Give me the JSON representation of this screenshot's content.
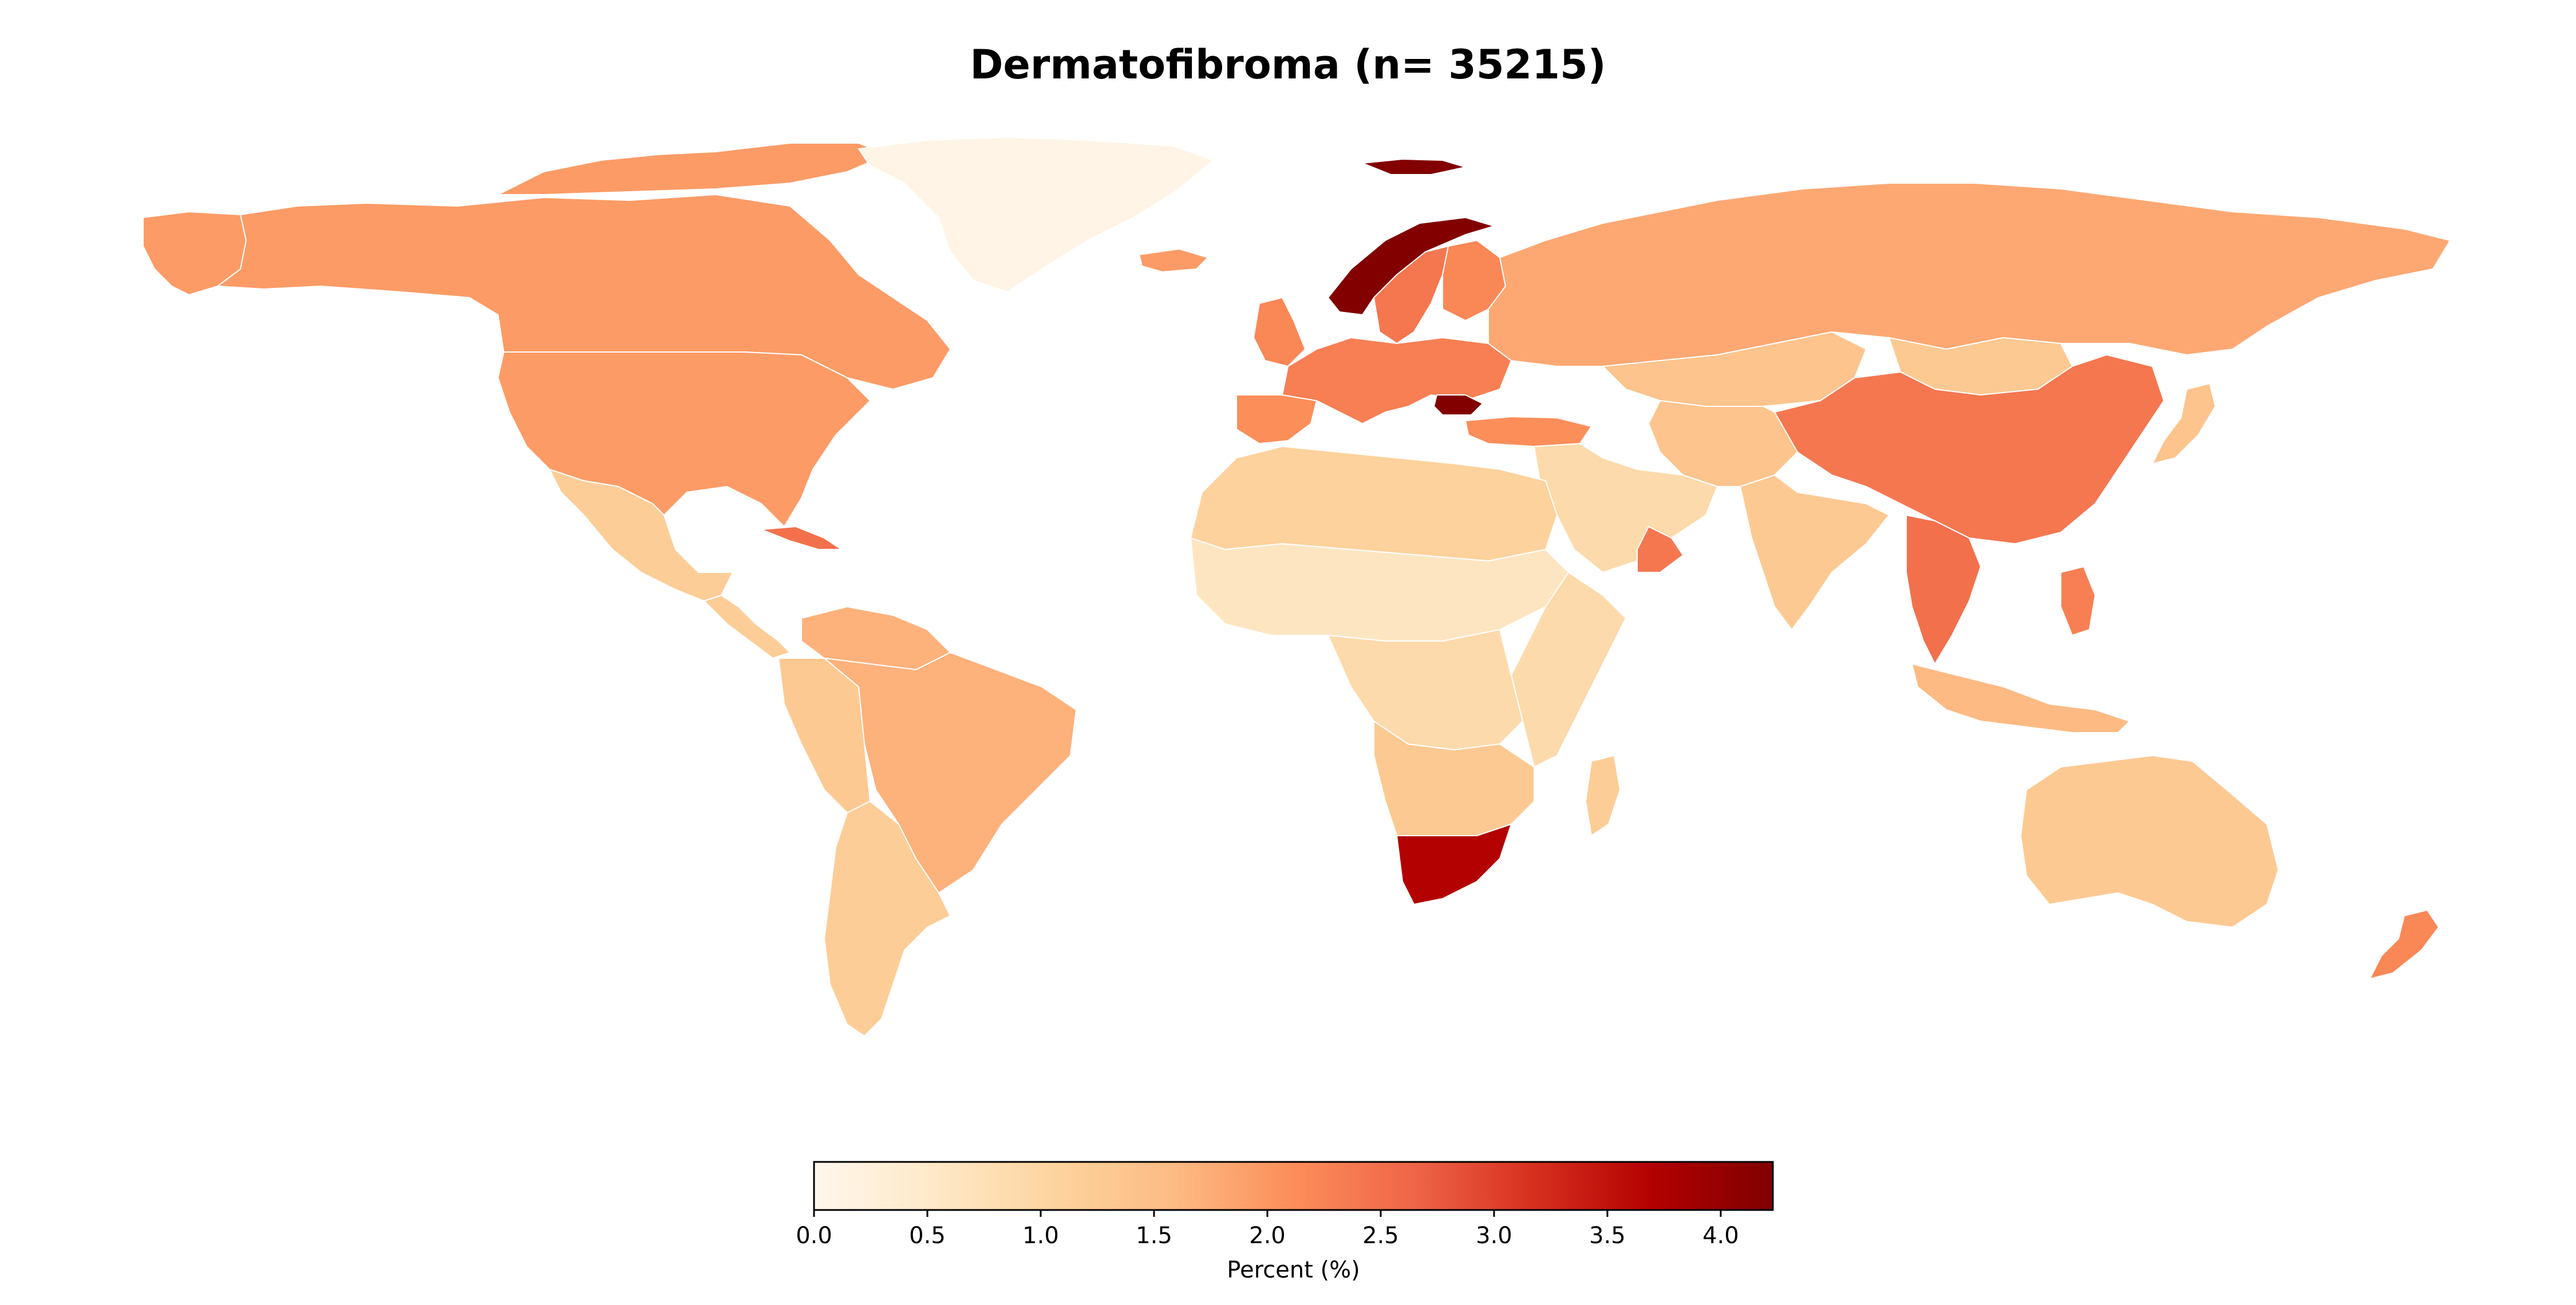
{
  "title": "Dermatofibroma (n= 35215)",
  "colorbar": {
    "label": "Percent (%)",
    "min": 0.0,
    "max": 4.23,
    "ticks": [
      0.0,
      0.5,
      1.0,
      1.5,
      2.0,
      2.5,
      3.0,
      3.5,
      4.0
    ],
    "tick_labels": [
      "0.0",
      "0.5",
      "1.0",
      "1.5",
      "2.0",
      "2.5",
      "3.0",
      "3.5",
      "4.0"
    ],
    "colormap": "OrRd",
    "stops": [
      "#fff7ec",
      "#fee8c8",
      "#fdd49e",
      "#fdbb84",
      "#fc8d59",
      "#ef6548",
      "#d7301f",
      "#b30000",
      "#7f0000"
    ]
  },
  "chart_data": {
    "type": "choropleth",
    "metric": "Percent (%)",
    "range": [
      0.0,
      4.23
    ],
    "regions": [
      {
        "name": "Canada",
        "value": 1.95
      },
      {
        "name": "United States",
        "value": 1.95
      },
      {
        "name": "Alaska",
        "value": 1.95
      },
      {
        "name": "Greenland",
        "value": 0.1
      },
      {
        "name": "Mexico",
        "value": 1.2
      },
      {
        "name": "Central America",
        "value": 1.2
      },
      {
        "name": "Cuba",
        "value": 2.5
      },
      {
        "name": "Brazil",
        "value": 1.7
      },
      {
        "name": "Andes",
        "value": 1.3
      },
      {
        "name": "Argentina",
        "value": 1.2
      },
      {
        "name": "Venezuela",
        "value": 1.7
      },
      {
        "name": "Iceland",
        "value": 1.95
      },
      {
        "name": "United Kingdom",
        "value": 2.2
      },
      {
        "name": "Norway",
        "value": 4.2
      },
      {
        "name": "Sweden",
        "value": 2.4
      },
      {
        "name": "Finland",
        "value": 2.2
      },
      {
        "name": "Central Europe",
        "value": 2.3
      },
      {
        "name": "Iberia",
        "value": 2.1
      },
      {
        "name": "Bulgaria",
        "value": 4.2
      },
      {
        "name": "Turkey",
        "value": 2.1
      },
      {
        "name": "Russia",
        "value": 1.8
      },
      {
        "name": "Kazakhstan",
        "value": 1.4
      },
      {
        "name": "Mongolia",
        "value": 1.3
      },
      {
        "name": "China",
        "value": 2.4
      },
      {
        "name": "Japan",
        "value": 1.4
      },
      {
        "name": "India",
        "value": 1.3
      },
      {
        "name": "Middle East",
        "value": 0.9
      },
      {
        "name": "Oman",
        "value": 2.4
      },
      {
        "name": "Southeast Asia",
        "value": 2.5
      },
      {
        "name": "Indonesia",
        "value": 1.6
      },
      {
        "name": "Philippines",
        "value": 2.3
      },
      {
        "name": "North Africa",
        "value": 1.1
      },
      {
        "name": "Sahel",
        "value": 0.6
      },
      {
        "name": "Central Africa",
        "value": 0.9
      },
      {
        "name": "East Africa",
        "value": 0.9
      },
      {
        "name": "Southern Africa",
        "value": 1.3
      },
      {
        "name": "South Africa",
        "value": 3.7
      },
      {
        "name": "Madagascar",
        "value": 1.2
      },
      {
        "name": "Australia",
        "value": 1.3
      },
      {
        "name": "New Zealand",
        "value": 2.2
      },
      {
        "name": "Svalbard",
        "value": 4.2
      }
    ]
  }
}
